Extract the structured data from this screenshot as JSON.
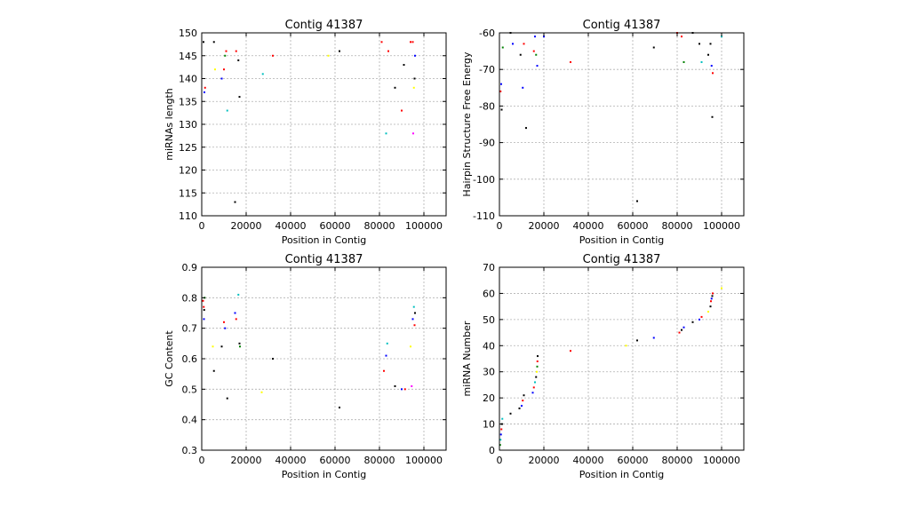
{
  "chart_data": [
    {
      "type": "scatter",
      "title": "Contig 41387",
      "xlabel": "Position in Contig",
      "ylabel": "miRNAs length",
      "xlim": [
        0,
        110000
      ],
      "ylim": [
        110,
        150
      ],
      "xticks": [
        0,
        20000,
        40000,
        60000,
        80000,
        100000
      ],
      "yticks": [
        110,
        115,
        120,
        125,
        130,
        135,
        140,
        145,
        150
      ],
      "grid": true,
      "points": [
        {
          "x": 800,
          "y": 148,
          "c": "#000000"
        },
        {
          "x": 1200,
          "y": 137,
          "c": "#0000ff"
        },
        {
          "x": 1500,
          "y": 138,
          "c": "#ff0000"
        },
        {
          "x": 5500,
          "y": 148,
          "c": "#000000"
        },
        {
          "x": 6000,
          "y": 142,
          "c": "#ffff00"
        },
        {
          "x": 9000,
          "y": 140,
          "c": "#0000ff"
        },
        {
          "x": 10000,
          "y": 142,
          "c": "#ff0000"
        },
        {
          "x": 10500,
          "y": 145,
          "c": "#008000"
        },
        {
          "x": 11000,
          "y": 146,
          "c": "#ff0000"
        },
        {
          "x": 11500,
          "y": 133,
          "c": "#00bfbf"
        },
        {
          "x": 15000,
          "y": 113,
          "c": "#000000"
        },
        {
          "x": 15500,
          "y": 146,
          "c": "#ff0000"
        },
        {
          "x": 16500,
          "y": 144,
          "c": "#000000"
        },
        {
          "x": 17000,
          "y": 136,
          "c": "#000000"
        },
        {
          "x": 27500,
          "y": 141,
          "c": "#00bfbf"
        },
        {
          "x": 32000,
          "y": 145,
          "c": "#ff0000"
        },
        {
          "x": 57000,
          "y": 145,
          "c": "#ffff00"
        },
        {
          "x": 62000,
          "y": 146,
          "c": "#000000"
        },
        {
          "x": 81000,
          "y": 148,
          "c": "#ff0000"
        },
        {
          "x": 83000,
          "y": 128,
          "c": "#00bfbf"
        },
        {
          "x": 84000,
          "y": 146,
          "c": "#ff0000"
        },
        {
          "x": 87000,
          "y": 138,
          "c": "#000000"
        },
        {
          "x": 90000,
          "y": 133,
          "c": "#ff0000"
        },
        {
          "x": 91000,
          "y": 143,
          "c": "#000000"
        },
        {
          "x": 94000,
          "y": 148,
          "c": "#ff0000"
        },
        {
          "x": 95000,
          "y": 148,
          "c": "#ff0000"
        },
        {
          "x": 95500,
          "y": 138,
          "c": "#ffff00"
        },
        {
          "x": 95800,
          "y": 140,
          "c": "#000000"
        },
        {
          "x": 96000,
          "y": 145,
          "c": "#0000ff"
        },
        {
          "x": 95200,
          "y": 128,
          "c": "#ff00ff"
        }
      ]
    },
    {
      "type": "scatter",
      "title": "Contig 41387",
      "xlabel": "Position in Contig",
      "ylabel": "Hairpin Structure Free Energy",
      "xlim": [
        0,
        110000
      ],
      "ylim": [
        -110,
        -60
      ],
      "xticks": [
        0,
        20000,
        40000,
        60000,
        80000,
        100000
      ],
      "yticks": [
        -110,
        -100,
        -90,
        -80,
        -70,
        -60
      ],
      "grid": true,
      "points": [
        {
          "x": 500,
          "y": -76,
          "c": "#ff0000"
        },
        {
          "x": 800,
          "y": -74,
          "c": "#0000ff"
        },
        {
          "x": 1000,
          "y": -81,
          "c": "#000000"
        },
        {
          "x": 1500,
          "y": -64,
          "c": "#008000"
        },
        {
          "x": 5000,
          "y": -60,
          "c": "#000000"
        },
        {
          "x": 6000,
          "y": -63,
          "c": "#0000ff"
        },
        {
          "x": 9500,
          "y": -66,
          "c": "#000000"
        },
        {
          "x": 10500,
          "y": -75,
          "c": "#0000ff"
        },
        {
          "x": 11000,
          "y": -63,
          "c": "#ff0000"
        },
        {
          "x": 12000,
          "y": -86,
          "c": "#000000"
        },
        {
          "x": 15500,
          "y": -65,
          "c": "#ff0000"
        },
        {
          "x": 16000,
          "y": -61,
          "c": "#0000ff"
        },
        {
          "x": 16500,
          "y": -66,
          "c": "#008000"
        },
        {
          "x": 17000,
          "y": -69,
          "c": "#0000ff"
        },
        {
          "x": 20000,
          "y": -61,
          "c": "#0000ff"
        },
        {
          "x": 32000,
          "y": -68,
          "c": "#ff0000"
        },
        {
          "x": 62000,
          "y": -106,
          "c": "#000000"
        },
        {
          "x": 69500,
          "y": -64,
          "c": "#000000"
        },
        {
          "x": 80000,
          "y": -60,
          "c": "#ff0000"
        },
        {
          "x": 82000,
          "y": -61,
          "c": "#ff0000"
        },
        {
          "x": 83000,
          "y": -68,
          "c": "#008000"
        },
        {
          "x": 87000,
          "y": -60,
          "c": "#000000"
        },
        {
          "x": 90000,
          "y": -63,
          "c": "#000000"
        },
        {
          "x": 91000,
          "y": -68,
          "c": "#00bfbf"
        },
        {
          "x": 94000,
          "y": -66,
          "c": "#000000"
        },
        {
          "x": 95000,
          "y": -63,
          "c": "#000000"
        },
        {
          "x": 95500,
          "y": -69,
          "c": "#0000ff"
        },
        {
          "x": 96000,
          "y": -71,
          "c": "#ff0000"
        },
        {
          "x": 95800,
          "y": -83,
          "c": "#000000"
        },
        {
          "x": 100000,
          "y": -61,
          "c": "#00bfbf"
        }
      ]
    },
    {
      "type": "scatter",
      "title": "Contig 41387",
      "xlabel": "Position in Contig",
      "ylabel": "GC Content",
      "xlim": [
        0,
        110000
      ],
      "ylim": [
        0.3,
        0.9
      ],
      "xticks": [
        0,
        20000,
        40000,
        60000,
        80000,
        100000
      ],
      "yticks": [
        0.3,
        0.4,
        0.5,
        0.6,
        0.7,
        0.8,
        0.9
      ],
      "grid": true,
      "points": [
        {
          "x": 600,
          "y": 0.79,
          "c": "#ff0000"
        },
        {
          "x": 900,
          "y": 0.77,
          "c": "#ff0000"
        },
        {
          "x": 1100,
          "y": 0.76,
          "c": "#000000"
        },
        {
          "x": 1300,
          "y": 0.8,
          "c": "#008000"
        },
        {
          "x": 1000,
          "y": 0.73,
          "c": "#0000ff"
        },
        {
          "x": 5500,
          "y": 0.56,
          "c": "#000000"
        },
        {
          "x": 5000,
          "y": 0.64,
          "c": "#ffff00"
        },
        {
          "x": 9000,
          "y": 0.64,
          "c": "#000000"
        },
        {
          "x": 10000,
          "y": 0.72,
          "c": "#ff0000"
        },
        {
          "x": 10500,
          "y": 0.7,
          "c": "#0000ff"
        },
        {
          "x": 11500,
          "y": 0.47,
          "c": "#000000"
        },
        {
          "x": 15000,
          "y": 0.75,
          "c": "#0000ff"
        },
        {
          "x": 15500,
          "y": 0.73,
          "c": "#ff0000"
        },
        {
          "x": 16500,
          "y": 0.81,
          "c": "#00bfbf"
        },
        {
          "x": 17000,
          "y": 0.65,
          "c": "#000000"
        },
        {
          "x": 17200,
          "y": 0.64,
          "c": "#008000"
        },
        {
          "x": 27000,
          "y": 0.49,
          "c": "#ffff00"
        },
        {
          "x": 32000,
          "y": 0.6,
          "c": "#000000"
        },
        {
          "x": 62000,
          "y": 0.44,
          "c": "#000000"
        },
        {
          "x": 82000,
          "y": 0.56,
          "c": "#ff0000"
        },
        {
          "x": 83000,
          "y": 0.61,
          "c": "#0000ff"
        },
        {
          "x": 83500,
          "y": 0.65,
          "c": "#00bfbf"
        },
        {
          "x": 87000,
          "y": 0.51,
          "c": "#000000"
        },
        {
          "x": 90000,
          "y": 0.5,
          "c": "#0000ff"
        },
        {
          "x": 91500,
          "y": 0.5,
          "c": "#ff0000"
        },
        {
          "x": 94000,
          "y": 0.64,
          "c": "#ffff00"
        },
        {
          "x": 94500,
          "y": 0.51,
          "c": "#ff00ff"
        },
        {
          "x": 95000,
          "y": 0.73,
          "c": "#0000ff"
        },
        {
          "x": 95500,
          "y": 0.77,
          "c": "#00bfbf"
        },
        {
          "x": 96000,
          "y": 0.75,
          "c": "#000000"
        },
        {
          "x": 95800,
          "y": 0.71,
          "c": "#ff0000"
        }
      ]
    },
    {
      "type": "scatter",
      "title": "Contig 41387",
      "xlabel": "Position in Contig",
      "ylabel": "miRNA Number",
      "xlim": [
        0,
        110000
      ],
      "ylim": [
        0,
        70
      ],
      "xticks": [
        0,
        20000,
        40000,
        60000,
        80000,
        100000
      ],
      "yticks": [
        0,
        10,
        20,
        30,
        40,
        50,
        60,
        70
      ],
      "grid": true,
      "points": [
        {
          "x": 300,
          "y": 2,
          "c": "#008000"
        },
        {
          "x": 500,
          "y": 4,
          "c": "#00bfbf"
        },
        {
          "x": 700,
          "y": 6,
          "c": "#0000ff"
        },
        {
          "x": 900,
          "y": 8,
          "c": "#ff0000"
        },
        {
          "x": 1100,
          "y": 10,
          "c": "#000000"
        },
        {
          "x": 1300,
          "y": 12,
          "c": "#00bfbf"
        },
        {
          "x": 5000,
          "y": 14,
          "c": "#000000"
        },
        {
          "x": 9000,
          "y": 16,
          "c": "#000000"
        },
        {
          "x": 10000,
          "y": 17,
          "c": "#0000ff"
        },
        {
          "x": 10500,
          "y": 19,
          "c": "#ff0000"
        },
        {
          "x": 11000,
          "y": 21,
          "c": "#000000"
        },
        {
          "x": 15000,
          "y": 22,
          "c": "#0000ff"
        },
        {
          "x": 15500,
          "y": 24,
          "c": "#ff0000"
        },
        {
          "x": 16000,
          "y": 26,
          "c": "#00bfbf"
        },
        {
          "x": 16500,
          "y": 28,
          "c": "#000000"
        },
        {
          "x": 16800,
          "y": 30,
          "c": "#ffff00"
        },
        {
          "x": 17000,
          "y": 32,
          "c": "#008000"
        },
        {
          "x": 17100,
          "y": 34,
          "c": "#ff0000"
        },
        {
          "x": 17200,
          "y": 36,
          "c": "#000000"
        },
        {
          "x": 32000,
          "y": 38,
          "c": "#ff0000"
        },
        {
          "x": 57000,
          "y": 40,
          "c": "#ffff00"
        },
        {
          "x": 62000,
          "y": 42,
          "c": "#000000"
        },
        {
          "x": 69500,
          "y": 43,
          "c": "#0000ff"
        },
        {
          "x": 81000,
          "y": 45,
          "c": "#ff0000"
        },
        {
          "x": 82000,
          "y": 46,
          "c": "#000000"
        },
        {
          "x": 83000,
          "y": 47,
          "c": "#0000ff"
        },
        {
          "x": 87000,
          "y": 49,
          "c": "#000000"
        },
        {
          "x": 90000,
          "y": 50,
          "c": "#0000ff"
        },
        {
          "x": 91000,
          "y": 51,
          "c": "#ff0000"
        },
        {
          "x": 94000,
          "y": 53,
          "c": "#ffff00"
        },
        {
          "x": 95000,
          "y": 55,
          "c": "#000000"
        },
        {
          "x": 95200,
          "y": 57,
          "c": "#ff0000"
        },
        {
          "x": 95500,
          "y": 58,
          "c": "#0000ff"
        },
        {
          "x": 95800,
          "y": 59,
          "c": "#000000"
        },
        {
          "x": 96000,
          "y": 60,
          "c": "#ff0000"
        },
        {
          "x": 100000,
          "y": 62,
          "c": "#ffff00"
        }
      ]
    }
  ]
}
